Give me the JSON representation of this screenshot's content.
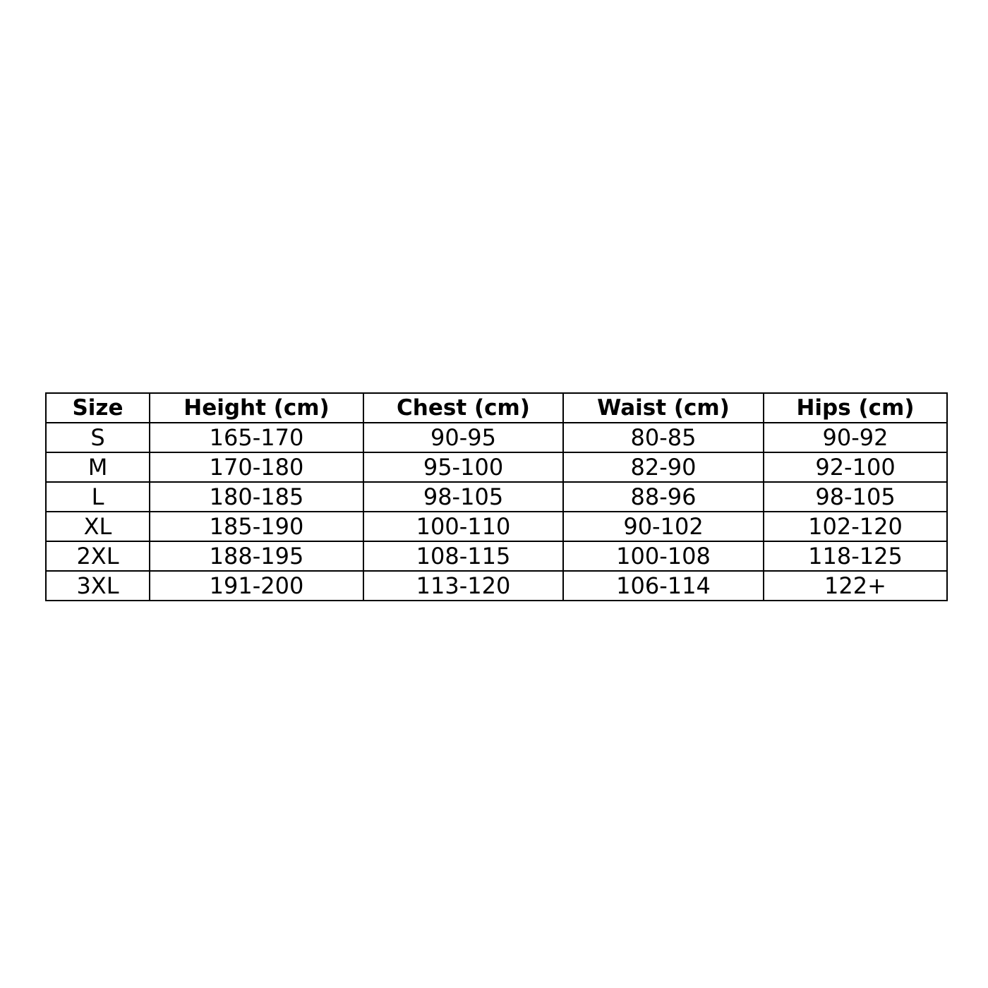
{
  "table": {
    "headers": [
      "Size",
      "Height (cm)",
      "Chest (cm)",
      "Waist (cm)",
      "Hips (cm)"
    ],
    "rows": [
      [
        "S",
        "165-170",
        "90-95",
        "80-85",
        "90-92"
      ],
      [
        "M",
        "170-180",
        "95-100",
        "82-90",
        "92-100"
      ],
      [
        "L",
        "180-185",
        "98-105",
        "88-96",
        "98-105"
      ],
      [
        "XL",
        "185-190",
        "100-110",
        "90-102",
        "102-120"
      ],
      [
        "2XL",
        "188-195",
        "108-115",
        "100-108",
        "118-125"
      ],
      [
        "3XL",
        "191-200",
        "113-120",
        "106-114",
        "122+"
      ]
    ]
  }
}
